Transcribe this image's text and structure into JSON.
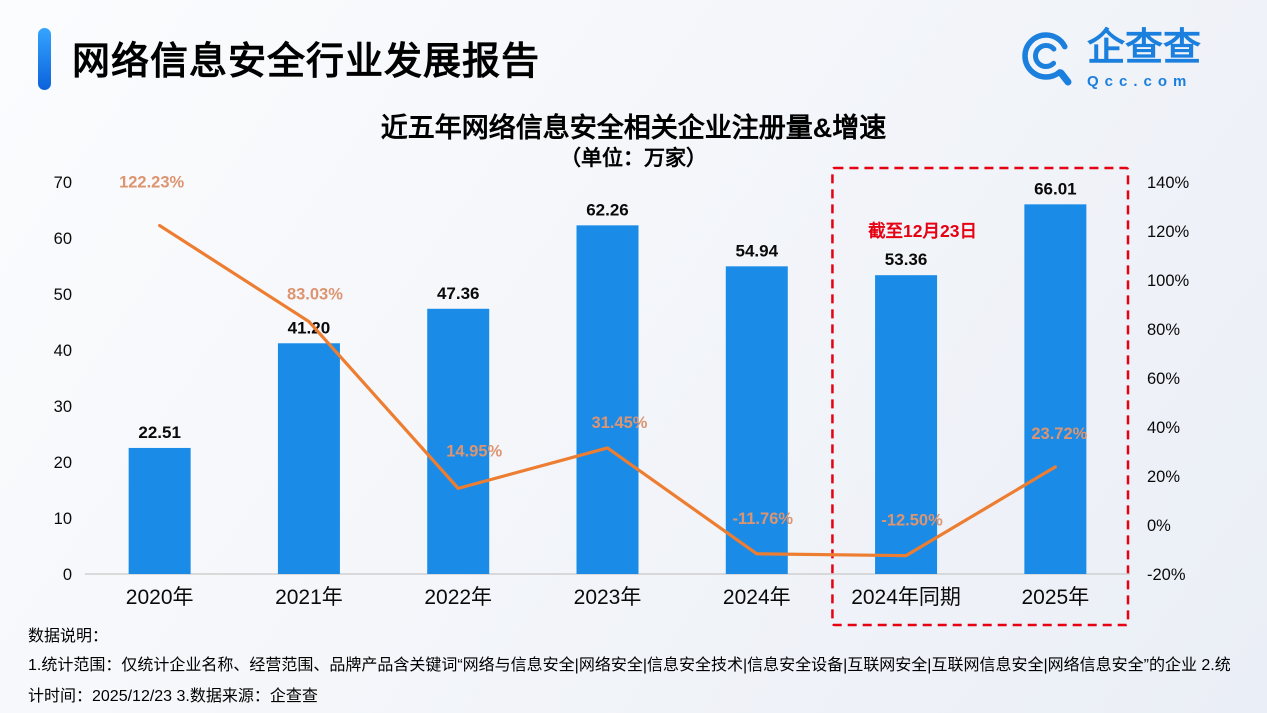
{
  "header": {
    "title": "网络信息安全行业发展报告",
    "logo_text": "企查查",
    "logo_sub": "Qcc.com"
  },
  "chart_data": {
    "type": "bar",
    "title": "近五年网络信息安全相关企业注册量&增速",
    "subtitle": "（单位：万家）",
    "categories": [
      "2020年",
      "2021年",
      "2022年",
      "2023年",
      "2024年",
      "2024年同期",
      "2025年"
    ],
    "series": [
      {
        "name": "注册量",
        "type": "bar",
        "values": [
          22.51,
          41.2,
          47.36,
          62.26,
          54.94,
          53.36,
          66.01
        ]
      },
      {
        "name": "增速",
        "type": "line",
        "unit": "%",
        "values": [
          122.23,
          83.03,
          14.95,
          31.45,
          -11.76,
          -12.5,
          23.72
        ]
      }
    ],
    "left_axis": {
      "min": 0,
      "max": 70,
      "tick_step": 10
    },
    "right_axis": {
      "min": -20,
      "max": 140,
      "tick_step": 20,
      "suffix": "%"
    },
    "annotation": "截至12月23日",
    "highlight_categories": [
      "2024年同期",
      "2025年"
    ],
    "legend": "none",
    "grid": "off",
    "colors": {
      "bar": "#1a8ce8",
      "line": "#ed7d31",
      "line_label": "#dd9470",
      "highlight_box": "#e60012",
      "annotation": "#e60012",
      "axis_text": "#0a0a0a",
      "baseline": "#cfcfcf"
    }
  },
  "footer": {
    "label": "数据说明：",
    "note": "1.统计范围：仅统计企业名称、经营范围、品牌产品含关键词“网络与信息安全|网络安全|信息安全技术|信息安全设备|互联网安全|互联网信息安全|网络信息安全”的企业 2.统计时间：2025/12/23  3.数据来源：企查查"
  }
}
